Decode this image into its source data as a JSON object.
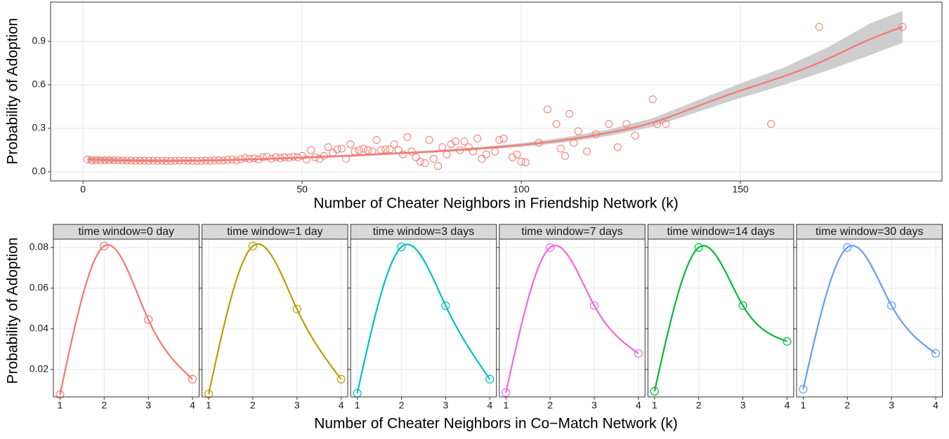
{
  "chart_data": [
    {
      "type": "scatter",
      "ylabel": "Probability of Adoption",
      "xlabel": "Number of Cheater Neighbors in Friendship Network (k)",
      "color": "#F8766D",
      "x": [
        1,
        2,
        3,
        4,
        5,
        6,
        7,
        8,
        9,
        10,
        11,
        12,
        13,
        14,
        15,
        16,
        17,
        18,
        19,
        20,
        21,
        22,
        23,
        24,
        25,
        26,
        27,
        28,
        29,
        30,
        31,
        32,
        33,
        34,
        35,
        36,
        37,
        38,
        39,
        40,
        41,
        42,
        43,
        44,
        45,
        46,
        47,
        48,
        49,
        50,
        51,
        52,
        53,
        54,
        55,
        56,
        57,
        58,
        59,
        60,
        61,
        62,
        63,
        64,
        65,
        66,
        67,
        68,
        69,
        70,
        71,
        72,
        73,
        74,
        75,
        76,
        77,
        78,
        79,
        80,
        81,
        82,
        83,
        84,
        85,
        86,
        87,
        88,
        89,
        90,
        91,
        92,
        94,
        95,
        96,
        98,
        99,
        100,
        101,
        104,
        106,
        108,
        109,
        110,
        111,
        112,
        113,
        115,
        117,
        120,
        122,
        124,
        126,
        130,
        131,
        133,
        157,
        168,
        187
      ],
      "values": [
        0.085,
        0.078,
        0.08,
        0.079,
        0.08,
        0.08,
        0.08,
        0.079,
        0.078,
        0.078,
        0.078,
        0.077,
        0.077,
        0.077,
        0.076,
        0.076,
        0.076,
        0.077,
        0.075,
        0.075,
        0.076,
        0.077,
        0.078,
        0.077,
        0.076,
        0.075,
        0.076,
        0.078,
        0.077,
        0.079,
        0.08,
        0.078,
        0.082,
        0.085,
        0.078,
        0.088,
        0.095,
        0.09,
        0.093,
        0.085,
        0.1,
        0.105,
        0.09,
        0.1,
        0.095,
        0.1,
        0.098,
        0.105,
        0.1,
        0.11,
        0.085,
        0.15,
        0.1,
        0.09,
        0.11,
        0.17,
        0.13,
        0.155,
        0.16,
        0.09,
        0.19,
        0.14,
        0.15,
        0.16,
        0.15,
        0.14,
        0.22,
        0.15,
        0.155,
        0.155,
        0.19,
        0.15,
        0.12,
        0.24,
        0.14,
        0.1,
        0.07,
        0.06,
        0.22,
        0.09,
        0.04,
        0.17,
        0.12,
        0.19,
        0.21,
        0.15,
        0.21,
        0.17,
        0.14,
        0.23,
        0.09,
        0.12,
        0.14,
        0.22,
        0.23,
        0.1,
        0.12,
        0.07,
        0.065,
        0.2,
        0.43,
        0.33,
        0.16,
        0.11,
        0.4,
        0.2,
        0.28,
        0.14,
        0.26,
        0.33,
        0.17,
        0.33,
        0.25,
        0.5,
        0.33,
        0.33,
        0.33,
        1.0,
        1.0
      ],
      "fit": {
        "color": "#F8766D",
        "ribbon_color": "#bdbdbd",
        "x": [
          1,
          10,
          20,
          30,
          40,
          50,
          60,
          70,
          80,
          90,
          100,
          110,
          120,
          130,
          140,
          150,
          160,
          170,
          180,
          187
        ],
        "values": [
          0.085,
          0.078,
          0.076,
          0.079,
          0.087,
          0.098,
          0.11,
          0.125,
          0.14,
          0.16,
          0.185,
          0.22,
          0.27,
          0.34,
          0.45,
          0.56,
          0.66,
          0.78,
          0.92,
          1.0
        ],
        "upper": [
          0.11,
          0.093,
          0.086,
          0.087,
          0.094,
          0.105,
          0.118,
          0.133,
          0.149,
          0.17,
          0.198,
          0.238,
          0.292,
          0.37,
          0.49,
          0.61,
          0.72,
          0.86,
          1.03,
          1.11
        ],
        "lower": [
          0.062,
          0.064,
          0.066,
          0.071,
          0.08,
          0.091,
          0.102,
          0.117,
          0.131,
          0.15,
          0.172,
          0.203,
          0.248,
          0.31,
          0.41,
          0.51,
          0.6,
          0.7,
          0.81,
          0.89
        ]
      },
      "xlim": [
        -7.4,
        196
      ],
      "ylim": [
        -0.063,
        1.171
      ],
      "xticks": [
        0,
        50,
        100,
        150
      ],
      "yticks": [
        {
          "value": 0,
          "label": "0.0"
        },
        0.3,
        0.6,
        0.9
      ],
      "grid": true
    },
    {
      "type": "line",
      "ylabel": "Probability of Adoption",
      "xlabel": "Number of Cheater Neighbors in Co−Match Network (k)",
      "x": [
        1,
        2,
        3,
        4
      ],
      "series": [
        {
          "name": "time window=0 day",
          "color": "#F8766D",
          "values": [
            0.0076,
            0.0807,
            0.0445,
            0.0152
          ]
        },
        {
          "name": "time window=1 day",
          "color": "#B79F00",
          "values": [
            0.0079,
            0.0807,
            0.0497,
            0.0152
          ]
        },
        {
          "name": "time window=3 days",
          "color": "#00BFC4",
          "values": [
            0.0083,
            0.0803,
            0.0514,
            0.0152
          ]
        },
        {
          "name": "time window=7 days",
          "color": "#F564E3",
          "values": [
            0.0086,
            0.08,
            0.0514,
            0.0279
          ]
        },
        {
          "name": "time window=14 days",
          "color": "#00BA38",
          "values": [
            0.0093,
            0.08,
            0.0514,
            0.0338
          ]
        },
        {
          "name": "time window=30 days",
          "color": "#619CFF",
          "values": [
            0.0103,
            0.08,
            0.0514,
            0.0279
          ]
        }
      ],
      "xlim": [
        0.85,
        4.15
      ],
      "ylim": [
        0.0065,
        0.0841
      ],
      "xticks": [
        1,
        2,
        3,
        4
      ],
      "yticks": [
        0.02,
        0.04,
        0.06,
        0.08
      ],
      "grid": true
    }
  ]
}
